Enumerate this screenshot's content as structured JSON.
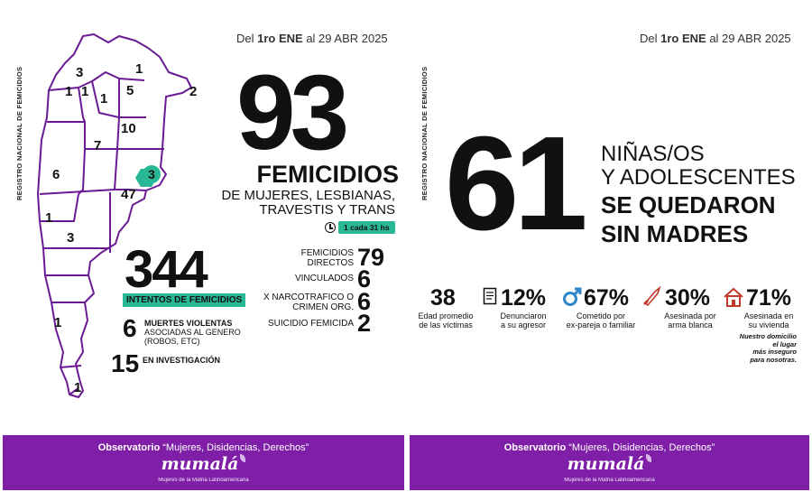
{
  "left": {
    "side_label": "REGISTRO NACIONAL DE FEMICIDIOS",
    "date_prefix": "Del ",
    "date_bold": "1ro ENE",
    "date_suffix": " al 29 ABR 2025",
    "map_numbers": [
      "3",
      "1",
      "1",
      "1",
      "1",
      "5",
      "2",
      "10",
      "7",
      "3",
      "6",
      "47",
      "1",
      "3",
      "1",
      "1"
    ],
    "femicide_count": "93",
    "femicide_title": "FEMICIDIOS",
    "femicide_sub_1": "DE MUJERES, LESBIANAS,",
    "femicide_sub_2": "TRAVESTIS Y TRANS",
    "rate": "1 cada 31 hs",
    "attempts_count": "344",
    "attempts_label_bold": "INTENTOS",
    "attempts_label_rest": " DE FEMICIDIOS",
    "breakdown": [
      {
        "label": "FEMICIDIOS DIRECTOS",
        "value": "79"
      },
      {
        "label": "VINCULADOS",
        "value": "6"
      },
      {
        "label": "X NARCOTRAFICO O CRIMEN ORG.",
        "value": "6"
      },
      {
        "label": "SUICIDIO FEMICIDA",
        "value": "2"
      }
    ],
    "violent_count": "6",
    "violent_line1": "MUERTES VIOLENTAS",
    "violent_line2": "ASOCIADAS AL GENERO",
    "violent_line3": "(ROBOS, ETC)",
    "investigation_count": "15",
    "investigation_text": "EN INVESTIGACIÓN"
  },
  "right": {
    "side_label": "REGISTRO NACIONAL DE FEMICIDIOS",
    "date_prefix": "Del ",
    "date_bold": "1ro ENE",
    "date_suffix": " al 29 ABR 2025",
    "children_count": "61",
    "children_line1": "NIÑAS/OS",
    "children_line2": "Y ADOLESCENTES",
    "children_line3": "SE QUEDARON",
    "children_line4": "SIN MADRES",
    "stats": [
      {
        "value": "38",
        "label_1": "Edad promedio",
        "label_2": "de las víctimas",
        "icon": "none"
      },
      {
        "value": "12%",
        "label_1": "Denunciaron",
        "label_2": "a su agresor",
        "icon": "document-icon"
      },
      {
        "value": "67%",
        "label_1": "Cometido por",
        "label_2": "ex-pareja o familiar",
        "icon": "male-symbol-icon"
      },
      {
        "value": "30%",
        "label_1": "Asesinada por",
        "label_2": "arma blanca",
        "icon": "knife-icon"
      },
      {
        "value": "71%",
        "label_1": "Asesinada en",
        "label_2": "su vivienda",
        "icon": "house-icon"
      }
    ],
    "home_note_1": "Nuestro domicilio",
    "home_note_2": "el lugar",
    "home_note_3": "más inseguro",
    "home_note_4": "para nosotras."
  },
  "footer": {
    "observatory_bold": "Observatorio",
    "observatory_rest": " “Mujeres, Disidencias, Derechos”",
    "logo": "mumalá",
    "tagline": "Mujeres de la Matria Latinoamericana"
  },
  "colors": {
    "accent_green": "#29b896",
    "brand_purple": "#7f1fa8"
  }
}
